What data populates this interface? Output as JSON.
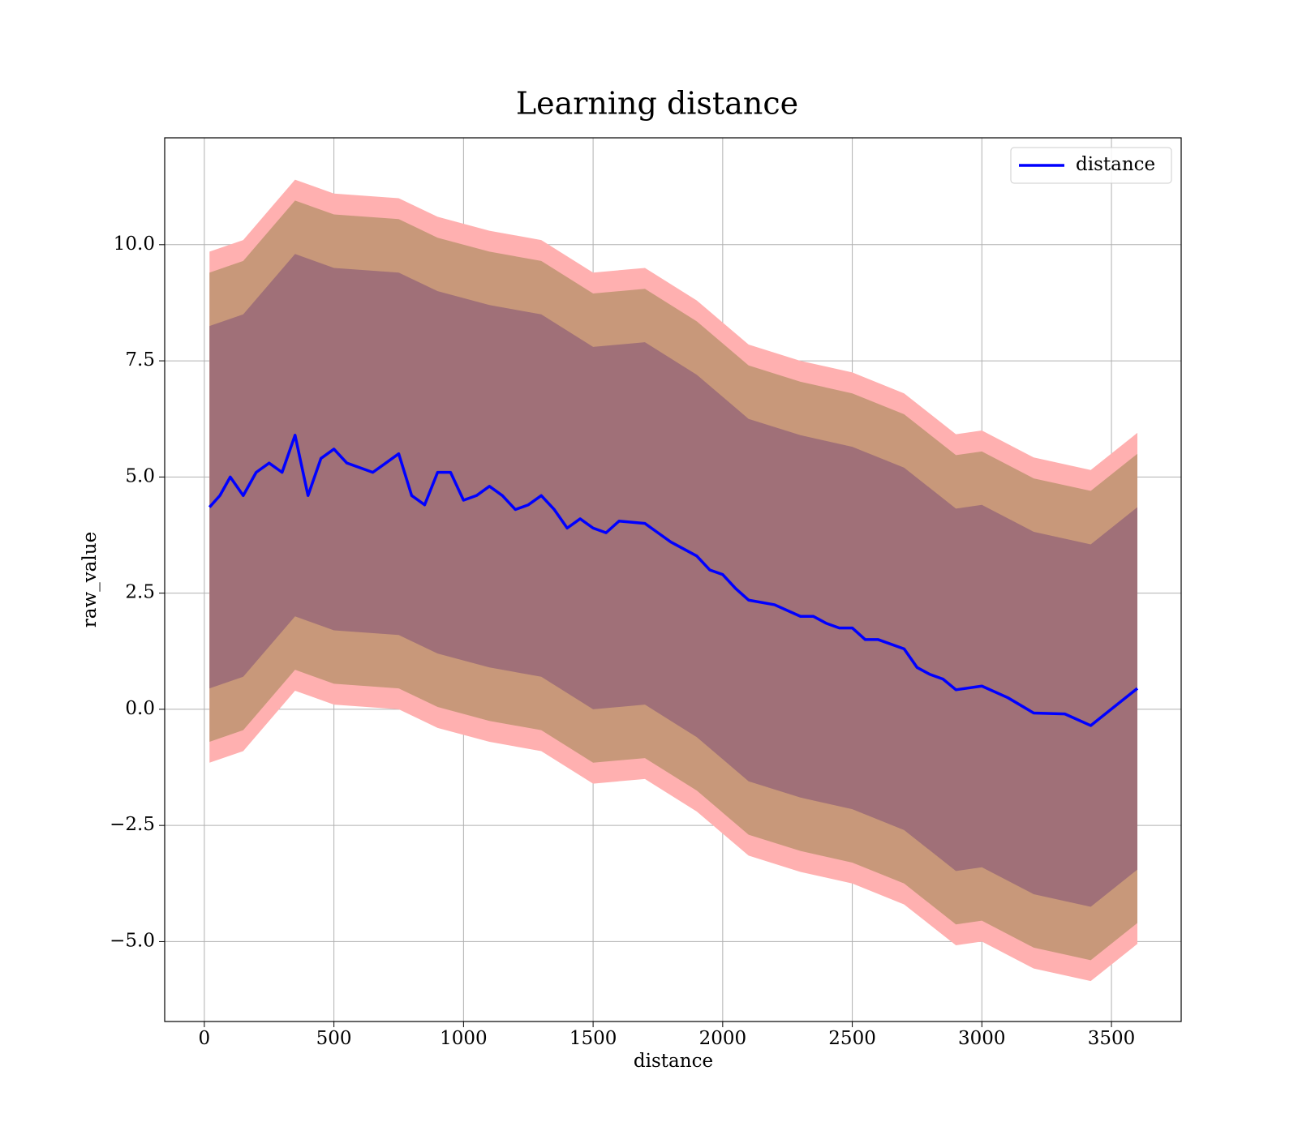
{
  "chart_data": {
    "type": "line",
    "title": "Learning distance",
    "xlabel": "distance",
    "ylabel": "raw_value",
    "x": [
      20,
      60,
      100,
      150,
      200,
      250,
      300,
      350,
      400,
      450,
      500,
      550,
      600,
      650,
      700,
      750,
      800,
      850,
      900,
      950,
      1000,
      1050,
      1100,
      1150,
      1200,
      1250,
      1300,
      1350,
      1400,
      1450,
      1500,
      1550,
      1600,
      1700,
      1750,
      1800,
      1900,
      1950,
      2000,
      2050,
      2100,
      2200,
      2300,
      2350,
      2400,
      2450,
      2500,
      2550,
      2600,
      2700,
      2750,
      2800,
      2850,
      2900,
      3000,
      3100,
      3200,
      3320,
      3420,
      3600
    ],
    "series": [
      {
        "name": "distance",
        "color": "#0000ff",
        "values": [
          4.35,
          4.6,
          5.0,
          4.6,
          5.1,
          5.3,
          5.1,
          5.9,
          4.6,
          5.4,
          5.6,
          5.3,
          5.2,
          5.1,
          5.3,
          5.5,
          4.6,
          4.4,
          5.1,
          5.1,
          4.5,
          4.6,
          4.8,
          4.6,
          4.3,
          4.4,
          4.6,
          4.3,
          3.9,
          4.1,
          3.9,
          3.8,
          4.05,
          4.0,
          3.8,
          3.6,
          3.3,
          3.0,
          2.9,
          2.6,
          2.35,
          2.25,
          2.0,
          2.0,
          1.85,
          1.75,
          1.75,
          1.5,
          1.5,
          1.3,
          0.9,
          0.75,
          0.65,
          0.42,
          0.5,
          0.25,
          -0.08,
          -0.1,
          -0.35,
          0.45
        ]
      }
    ],
    "bands": {
      "x": [
        20,
        150,
        350,
        500,
        750,
        900,
        1100,
        1300,
        1500,
        1700,
        1900,
        2100,
        2300,
        2500,
        2700,
        2900,
        3000,
        3200,
        3420,
        3600
      ],
      "fills": [
        {
          "color": "#ffb0b0",
          "upper": [
            9.85,
            10.1,
            11.4,
            11.1,
            11.0,
            10.6,
            10.3,
            10.1,
            9.4,
            9.5,
            8.8,
            7.85,
            7.5,
            7.25,
            6.8,
            5.92,
            6.0,
            5.42,
            5.15,
            5.95
          ],
          "lower": [
            -1.15,
            -0.9,
            0.4,
            0.1,
            0,
            -0.4,
            -0.7,
            -0.9,
            -1.6,
            -1.5,
            -2.2,
            -3.15,
            -3.5,
            -3.75,
            -4.2,
            -5.08,
            -5.0,
            -5.58,
            -5.85,
            -5.05
          ]
        },
        {
          "color": "#c8987a",
          "upper": [
            9.4,
            9.65,
            10.95,
            10.65,
            10.55,
            10.15,
            9.85,
            9.65,
            8.95,
            9.05,
            8.35,
            7.4,
            7.05,
            6.8,
            6.35,
            5.47,
            5.55,
            4.97,
            4.7,
            5.5
          ],
          "lower": [
            -0.7,
            -0.45,
            0.85,
            0.55,
            0.45,
            0.05,
            -0.25,
            -0.45,
            -1.15,
            -1.05,
            -1.75,
            -2.7,
            -3.05,
            -3.3,
            -3.75,
            -4.63,
            -4.55,
            -5.13,
            -5.4,
            -4.6
          ]
        },
        {
          "color": "#a07078",
          "upper": [
            8.25,
            8.5,
            9.8,
            9.5,
            9.4,
            9.0,
            8.7,
            8.5,
            7.8,
            7.9,
            7.2,
            6.25,
            5.9,
            5.65,
            5.2,
            4.32,
            4.4,
            3.82,
            3.55,
            4.35
          ],
          "lower": [
            0.45,
            0.7,
            2.0,
            1.7,
            1.6,
            1.2,
            0.9,
            0.7,
            0,
            0.1,
            -0.6,
            -1.55,
            -1.9,
            -2.15,
            -2.6,
            -3.48,
            -3.4,
            -3.98,
            -4.25,
            -3.45
          ]
        }
      ]
    },
    "xlim": [
      -153,
      3769
    ],
    "ylim": [
      -6.72,
      12.3
    ],
    "xticks": [
      0,
      500,
      1000,
      1500,
      2000,
      2500,
      3000,
      3500
    ],
    "yticks": [
      {
        "value": -5,
        "label": "−5.0"
      },
      {
        "value": -2.5,
        "label": "−2.5"
      },
      {
        "value": 0,
        "label": "0.0"
      },
      {
        "value": 2.5,
        "label": "2.5"
      },
      {
        "value": 5,
        "label": "5.0"
      },
      {
        "value": 7.5,
        "label": "7.5"
      },
      {
        "value": 10,
        "label": "10.0"
      }
    ],
    "grid": true,
    "legend": "upper right"
  }
}
